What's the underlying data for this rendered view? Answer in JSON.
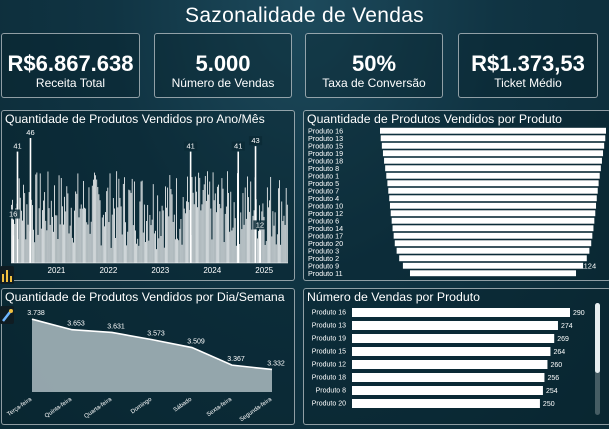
{
  "header": {
    "title": "Sazonalidade de Vendas"
  },
  "kpis": [
    {
      "value": "R$6.867.638",
      "label": "Receita Total"
    },
    {
      "value": "5.000",
      "label": "Número de Vendas"
    },
    {
      "value": "50%",
      "label": "Taxa de Conversão"
    },
    {
      "value": "R$1.373,53",
      "label": "Ticket Médio"
    }
  ],
  "panels": {
    "ano_mes_title": "Quantidade de Produtos Vendidos pro Ano/Mês",
    "produto_title": "Quantidade de  Produtos Vendidos por Produto",
    "dia_semana_title": "Quantidade de Produtos Vendidos por Dia/Semana",
    "vendas_produto_title": "Número de Vendas por Produto"
  },
  "icons": {
    "left_rail": [
      "bar-chart-icon",
      "paint-brush-icon"
    ]
  },
  "colors": {
    "bars": "#ffffff",
    "area_fill": "#a7b7bd",
    "area_line": "#ffffff",
    "panel_border": "#ffffff"
  },
  "chart_data": [
    {
      "type": "bar",
      "title": "Quantidade de Produtos Vendidos pro Ano/Mês",
      "x_ticks": [
        "2021",
        "2022",
        "2023",
        "2024",
        "2025"
      ],
      "xlim": [
        "2020-09",
        "2025-12"
      ],
      "ylim": [
        0,
        46
      ],
      "labeled_points": [
        {
          "x": "2020-10",
          "y": 41,
          "label": "41"
        },
        {
          "x": "2021-01",
          "y": 46,
          "label": "46"
        },
        {
          "x": "2024-02",
          "y": 41,
          "label": "41"
        },
        {
          "x": "2025-01",
          "y": 41,
          "label": "41"
        },
        {
          "x": "2025-05",
          "y": 43,
          "label": "43"
        },
        {
          "x": "2020-09",
          "y": 16,
          "label": "16"
        },
        {
          "x": "2025-06",
          "y": 12,
          "label": "12"
        }
      ],
      "note_values_typical_range": [
        5,
        34
      ]
    },
    {
      "type": "bar",
      "orientation": "horizontal",
      "title": "Quantidade de  Produtos Vendidos por Produto",
      "categories": [
        "Produto 16",
        "Produto 13",
        "Produto 15",
        "Produto 19",
        "Produto 18",
        "Produto 8",
        "Produto 1",
        "Produto 5",
        "Produto 7",
        "Produto 4",
        "Produto 10",
        "Produto 12",
        "Produto 6",
        "Produto 14",
        "Produto 17",
        "Produto 20",
        "Produto 3",
        "Produto 2",
        "Produto 9",
        "Produto 11"
      ],
      "values": [
        1530,
        1520,
        1505,
        1490,
        1475,
        1460,
        1445,
        1430,
        1418,
        1405,
        1395,
        1385,
        1372,
        1360,
        1345,
        1330,
        1305,
        1270,
        1220,
        1124
      ],
      "data_labels": [
        {
          "category": "Produto 11",
          "label": "1124"
        }
      ]
    },
    {
      "type": "area",
      "title": "Quantidade de Produtos Vendidos por Dia/Semana",
      "categories": [
        "Terça-feira",
        "Quinta-feira",
        "Quarta-feira",
        "Domingo",
        "Sábado",
        "Sexta-feira",
        "Segunda-feira"
      ],
      "values": [
        3738,
        3653,
        3631,
        3573,
        3509,
        3367,
        3332
      ],
      "labels": [
        "3.738",
        "3.653",
        "3.631",
        "3.573",
        "3.509",
        "3.367",
        "3.332"
      ],
      "ylim": [
        3150,
        3780
      ]
    },
    {
      "type": "bar",
      "orientation": "horizontal",
      "title": "Número de Vendas por Produto",
      "categories": [
        "Produto 16",
        "Produto 13",
        "Produto 19",
        "Produto 15",
        "Produto 12",
        "Produto 18",
        "Produto 8",
        "Produto 20"
      ],
      "values": [
        290,
        274,
        269,
        264,
        260,
        256,
        254,
        250
      ],
      "labels": [
        "290",
        "274",
        "269",
        "264",
        "260",
        "256",
        "254",
        "250"
      ]
    }
  ]
}
